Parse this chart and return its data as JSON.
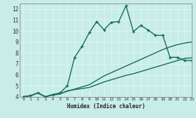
{
  "xlabel": "Humidex (Indice chaleur)",
  "xlim": [
    -0.5,
    23
  ],
  "ylim": [
    4,
    12.5
  ],
  "yticks": [
    4,
    5,
    6,
    7,
    8,
    9,
    10,
    11,
    12
  ],
  "xticks": [
    0,
    1,
    2,
    3,
    4,
    5,
    6,
    7,
    8,
    9,
    10,
    11,
    12,
    13,
    14,
    15,
    16,
    17,
    18,
    19,
    20,
    21,
    22,
    23
  ],
  "bg_color": "#c8ede8",
  "line_color": "#1a6b5a",
  "grid_color": "#e8f8f5",
  "lines": [
    {
      "x": [
        0,
        1,
        2,
        3,
        4,
        5,
        6,
        7,
        8,
        9,
        10,
        11,
        12,
        13,
        14,
        15,
        16,
        17,
        18,
        19,
        20,
        21,
        22,
        23
      ],
      "y": [
        4.0,
        4.1,
        4.35,
        4.0,
        4.15,
        4.25,
        4.55,
        4.65,
        4.75,
        4.85,
        5.1,
        5.35,
        5.55,
        5.75,
        5.95,
        6.1,
        6.3,
        6.5,
        6.7,
        6.9,
        7.1,
        7.3,
        7.5,
        7.55
      ],
      "marker": null,
      "linestyle": "-",
      "linewidth": 1.0
    },
    {
      "x": [
        0,
        1,
        2,
        3,
        4,
        5,
        6,
        7,
        8,
        9,
        10,
        11,
        12,
        13,
        14,
        15,
        16,
        17,
        18,
        19,
        20,
        21,
        22,
        23
      ],
      "y": [
        4.0,
        4.1,
        4.35,
        4.0,
        4.2,
        4.3,
        4.5,
        4.7,
        4.9,
        5.1,
        5.5,
        5.9,
        6.2,
        6.5,
        6.8,
        7.1,
        7.4,
        7.7,
        8.0,
        8.3,
        8.55,
        8.75,
        8.9,
        9.0
      ],
      "marker": null,
      "linestyle": "-",
      "linewidth": 1.0
    },
    {
      "x": [
        0,
        1,
        2,
        3,
        4,
        5,
        6,
        7,
        8,
        9,
        10,
        11,
        12,
        13,
        14,
        15,
        16,
        17,
        18,
        19,
        20,
        21,
        22,
        23
      ],
      "y": [
        4.0,
        4.1,
        4.35,
        4.0,
        4.2,
        4.35,
        5.0,
        7.6,
        8.6,
        9.85,
        10.85,
        10.1,
        10.8,
        10.85,
        12.3,
        9.95,
        10.5,
        10.1,
        9.6,
        9.6,
        7.6,
        7.6,
        7.3,
        7.3
      ],
      "marker": "+",
      "linestyle": "-",
      "linewidth": 1.0
    }
  ]
}
